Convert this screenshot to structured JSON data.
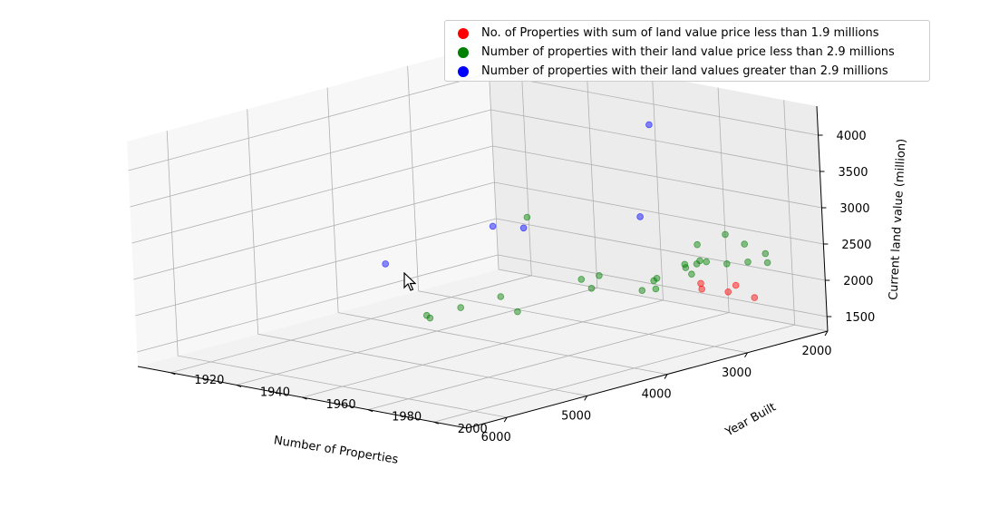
{
  "chart_data": {
    "type": "scatter",
    "projection": "3d",
    "xlabel": "Number of Properties",
    "ylabel": "Year Built",
    "zlabel": "Current land value (million)",
    "xticks": [
      2000,
      3000,
      4000,
      5000,
      6000
    ],
    "yticks": [
      1920,
      1940,
      1960,
      1980,
      2000
    ],
    "zticks": [
      1500,
      2000,
      2500,
      3000,
      3500,
      4000
    ],
    "xlim": [
      2000,
      6500
    ],
    "ylim": [
      1910,
      2010
    ],
    "zlim": [
      1300,
      4400
    ],
    "grid": true,
    "legend_position": "top-right",
    "series": [
      {
        "name": "No. of Properties with sum of land value price less than 1.9 millions",
        "color": "#ff0000",
        "points": [
          {
            "x": 2300,
            "y": 1990,
            "z": 1850
          },
          {
            "x": 2330,
            "y": 1980,
            "z": 1800
          },
          {
            "x": 2400,
            "y": 1982,
            "z": 1760
          },
          {
            "x": 2480,
            "y": 1992,
            "z": 1830
          },
          {
            "x": 2600,
            "y": 2003,
            "z": 1880
          }
        ]
      },
      {
        "name": "Number of properties with their land value price less than 2.9 millions",
        "color": "#008000",
        "points": [
          {
            "x": 2100,
            "y": 1922,
            "z": 2150
          },
          {
            "x": 2200,
            "y": 1985,
            "z": 2480
          },
          {
            "x": 2250,
            "y": 1992,
            "z": 2420
          },
          {
            "x": 2350,
            "y": 1980,
            "z": 2340
          },
          {
            "x": 2500,
            "y": 2005,
            "z": 2350
          },
          {
            "x": 2600,
            "y": 2007,
            "z": 2520
          },
          {
            "x": 2700,
            "y": 2004,
            "z": 2410
          },
          {
            "x": 2800,
            "y": 2000,
            "z": 2380
          },
          {
            "x": 2850,
            "y": 1995,
            "z": 2380
          },
          {
            "x": 3050,
            "y": 1998,
            "z": 2480
          },
          {
            "x": 3250,
            "y": 2002,
            "z": 2530
          },
          {
            "x": 3400,
            "y": 2004,
            "z": 2450
          },
          {
            "x": 3550,
            "y": 2006,
            "z": 2600
          },
          {
            "x": 3600,
            "y": 2007,
            "z": 2670
          },
          {
            "x": 3750,
            "y": 2002,
            "z": 2480
          },
          {
            "x": 3850,
            "y": 2004,
            "z": 2380
          },
          {
            "x": 3950,
            "y": 2006,
            "z": 2540
          },
          {
            "x": 4000,
            "y": 1965,
            "z": 1780
          },
          {
            "x": 4100,
            "y": 2006,
            "z": 2450
          },
          {
            "x": 4200,
            "y": 1993,
            "z": 2400
          },
          {
            "x": 4400,
            "y": 1995,
            "z": 2600
          },
          {
            "x": 4600,
            "y": 1975,
            "z": 2250
          },
          {
            "x": 4700,
            "y": 2008,
            "z": 2850
          },
          {
            "x": 4800,
            "y": 1958,
            "z": 1870
          },
          {
            "x": 5000,
            "y": 1962,
            "z": 2000
          },
          {
            "x": 5300,
            "y": 1980,
            "z": 2350
          }
        ]
      },
      {
        "name": "Number of properties with their land values greater than 2.9 millions",
        "color": "#0000ff",
        "points": [
          {
            "x": 2150,
            "y": 1962,
            "z": 3780
          },
          {
            "x": 4000,
            "y": 2004,
            "z": 3420
          },
          {
            "x": 5200,
            "y": 1998,
            "z": 3570
          },
          {
            "x": 5900,
            "y": 2006,
            "z": 3870
          },
          {
            "x": 6200,
            "y": 1980,
            "z": 3220
          }
        ]
      }
    ]
  }
}
